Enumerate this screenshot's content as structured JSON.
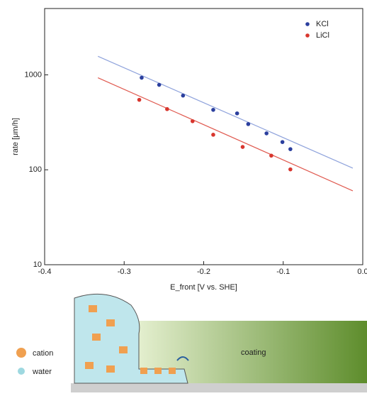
{
  "chart_data": {
    "type": "scatter",
    "x_label": "E_front [V vs. SHE]",
    "y_label": "rate [μm/h]",
    "xlim": [
      -0.4,
      0.0
    ],
    "ylim": [
      10,
      5000
    ],
    "ylog": true,
    "xticks": [
      -0.4,
      -0.3,
      -0.2,
      -0.1,
      {
        "value": 0,
        "label": "0.0"
      }
    ],
    "yticks": [
      10,
      100,
      1000
    ],
    "legend": "top-right",
    "series": [
      {
        "name": "KCl",
        "color": "#2b3f9e",
        "x": [
          -0.278,
          -0.256,
          -0.226,
          -0.188,
          -0.158,
          -0.144,
          -0.121,
          -0.101,
          -0.091
        ],
        "values": [
          933,
          785,
          605,
          428,
          393,
          303,
          242,
          196,
          165
        ],
        "fit_x": [
          -0.333,
          -0.0125
        ],
        "fit_values": [
          1570,
          104
        ],
        "fit_color": "#8fa3dc"
      },
      {
        "name": "LiCl",
        "color": "#d8362e",
        "x": [
          -0.281,
          -0.246,
          -0.214,
          -0.188,
          -0.151,
          -0.115,
          -0.091
        ],
        "values": [
          546,
          436,
          325,
          234,
          174,
          141,
          101
        ],
        "fit_x": [
          -0.333,
          -0.0125
        ],
        "fit_values": [
          933,
          60
        ],
        "fit_color": "#e05a50"
      }
    ]
  },
  "diagram": {
    "legend": [
      "cation",
      "water"
    ],
    "coating": "coating"
  }
}
